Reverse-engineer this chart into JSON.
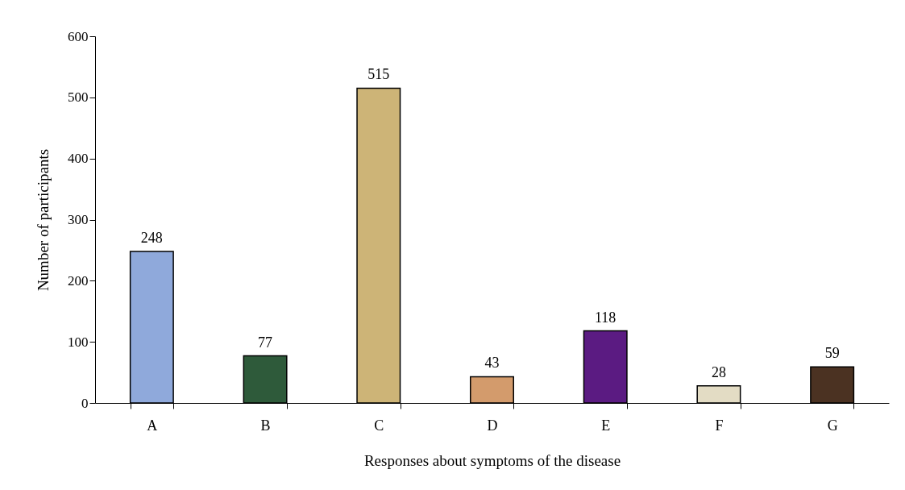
{
  "chart_data": {
    "type": "bar",
    "xlabel": "Responses about symptoms of the disease",
    "ylabel": "Number of participants",
    "categories": [
      "A",
      "B",
      "C",
      "D",
      "E",
      "F",
      "G"
    ],
    "values": [
      248,
      77,
      515,
      43,
      118,
      28,
      59
    ],
    "colors": [
      "#8fa9db",
      "#2e5a3a",
      "#cdb477",
      "#d39b6c",
      "#5b1b82",
      "#e3dcc4",
      "#4b3222"
    ],
    "ylim": [
      0,
      600
    ],
    "yticks": [
      0,
      100,
      200,
      300,
      400,
      500,
      600
    ],
    "grid": false,
    "data_labels": true
  }
}
